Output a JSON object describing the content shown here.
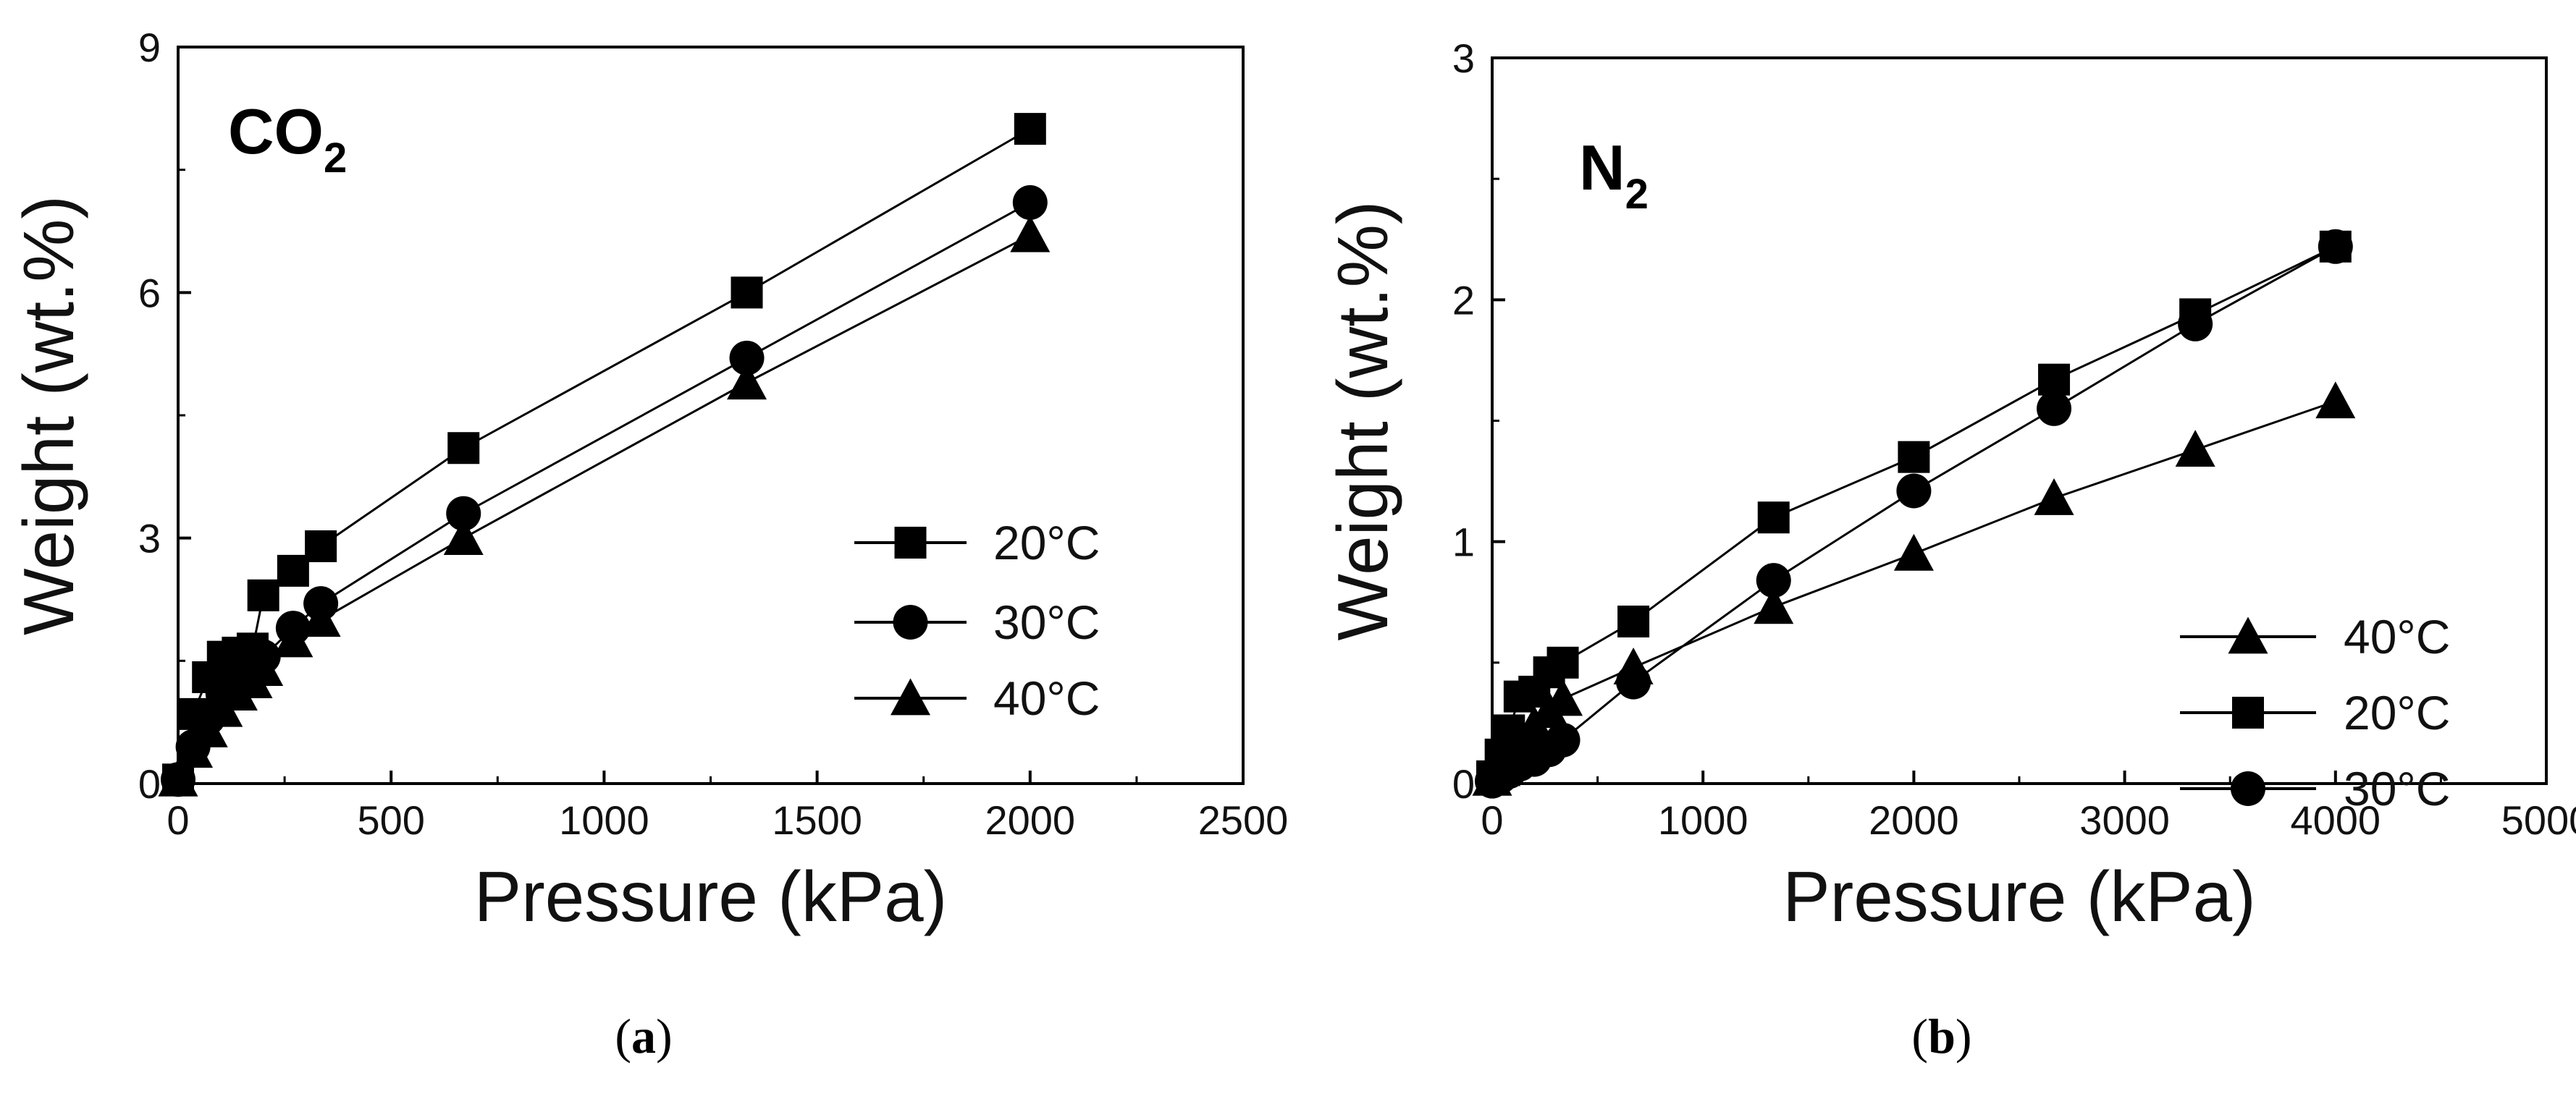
{
  "chart_data": [
    {
      "type": "line",
      "panel": "a",
      "gas_label": {
        "main": "CO",
        "sub": "2"
      },
      "xlabel": "Pressure (kPa)",
      "ylabel": "Weight (wt.%)",
      "xlim": [
        0,
        2500
      ],
      "ylim": [
        0,
        9
      ],
      "xticks": [
        "0",
        "500",
        "1000",
        "1500",
        "2000",
        "2500"
      ],
      "yticks": [
        "0",
        "3",
        "6",
        "9"
      ],
      "legend_position": "center-right",
      "caption": {
        "open": "(",
        "letter": "a",
        "close": ")"
      },
      "series": [
        {
          "name": "20°C",
          "marker": "square",
          "x": [
            0,
            35,
            70,
            105,
            140,
            175,
            200,
            270,
            335,
            670,
            1335,
            2000
          ],
          "y": [
            0.05,
            0.85,
            1.3,
            1.55,
            1.6,
            1.65,
            2.3,
            2.6,
            2.9,
            4.1,
            6.0,
            8.0
          ]
        },
        {
          "name": "30°C",
          "marker": "circle",
          "x": [
            0,
            35,
            70,
            105,
            140,
            175,
            200,
            270,
            335,
            670,
            1335,
            2000
          ],
          "y": [
            0.05,
            0.45,
            0.8,
            1.1,
            1.3,
            1.45,
            1.55,
            1.9,
            2.2,
            3.3,
            5.2,
            7.1
          ]
        },
        {
          "name": "40°C",
          "marker": "triangle",
          "x": [
            0,
            35,
            70,
            105,
            140,
            175,
            200,
            270,
            335,
            670,
            1335,
            2000
          ],
          "y": [
            0.05,
            0.4,
            0.65,
            0.9,
            1.1,
            1.25,
            1.4,
            1.75,
            2.0,
            3.0,
            4.9,
            6.7
          ]
        }
      ]
    },
    {
      "type": "line",
      "panel": "b",
      "gas_label": {
        "main": "N",
        "sub": "2"
      },
      "xlabel": "Pressure (kPa)",
      "ylabel": "Weight (wt.%)",
      "xlim": [
        0,
        5000
      ],
      "ylim": [
        0,
        3
      ],
      "xticks": [
        "0",
        "1000",
        "2000",
        "3000",
        "4000",
        "5000"
      ],
      "yticks": [
        "0",
        "1",
        "2",
        "3"
      ],
      "legend_position": "bottom-right",
      "caption": {
        "open": "(",
        "letter": "b",
        "close": ")"
      },
      "series": [
        {
          "name": "40°C",
          "marker": "triangle",
          "x": [
            0,
            40,
            80,
            130,
            200,
            270,
            335,
            670,
            1335,
            2000,
            2665,
            3335,
            4000
          ],
          "y": [
            0.02,
            0.06,
            0.12,
            0.18,
            0.24,
            0.3,
            0.35,
            0.48,
            0.73,
            0.95,
            1.18,
            1.38,
            1.58
          ]
        },
        {
          "name": "20°C",
          "marker": "square",
          "x": [
            0,
            40,
            80,
            130,
            200,
            270,
            335,
            670,
            1335,
            2000,
            2665,
            3335,
            4000
          ],
          "y": [
            0.03,
            0.12,
            0.22,
            0.36,
            0.38,
            0.46,
            0.5,
            0.67,
            1.1,
            1.35,
            1.67,
            1.94,
            2.22
          ]
        },
        {
          "name": "30°C",
          "marker": "circle",
          "x": [
            0,
            40,
            80,
            130,
            200,
            270,
            335,
            670,
            1335,
            2000,
            2665,
            3335,
            4000
          ],
          "y": [
            0.01,
            0.03,
            0.05,
            0.08,
            0.1,
            0.14,
            0.18,
            0.42,
            0.84,
            1.21,
            1.55,
            1.9,
            2.22
          ]
        }
      ]
    }
  ]
}
